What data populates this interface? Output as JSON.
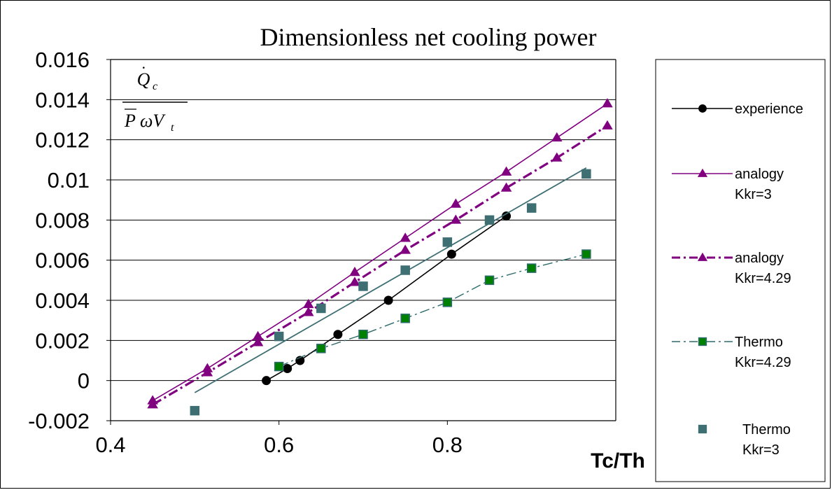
{
  "chart_data": {
    "type": "line",
    "title": "Dimensionless net cooling power",
    "xlabel": "Tc/Th",
    "ylabel": "Q̇c / (P̄ ω Vt)",
    "xlim": [
      0.4,
      1.0
    ],
    "ylim": [
      -0.002,
      0.016
    ],
    "xticks": [
      0.4,
      0.6,
      0.8
    ],
    "xtick_labels": [
      "0.4",
      "0.6",
      "0.8"
    ],
    "yticks": [
      -0.002,
      0,
      0.002,
      0.004,
      0.006,
      0.008,
      0.01,
      0.012,
      0.014,
      0.016
    ],
    "ytick_labels": [
      "-0.002",
      "0",
      "0.002",
      "0.004",
      "0.006",
      "0.008",
      "0.01",
      "0.012",
      "0.014",
      "0.016"
    ],
    "grid": "horizontal",
    "legend_position": "right",
    "series": [
      {
        "name_lines": [
          "experience"
        ],
        "color": "#000000",
        "marker": "circle",
        "line": "solid",
        "x": [
          0.585,
          0.61,
          0.625,
          0.67,
          0.73,
          0.805,
          0.87
        ],
        "y": [
          0.0,
          0.0006,
          0.001,
          0.0023,
          0.004,
          0.0063,
          0.0082
        ]
      },
      {
        "name_lines": [
          "analogy",
          "Kkr=3"
        ],
        "color": "#800080",
        "marker": "triangle",
        "line": "solid",
        "x": [
          0.45,
          0.515,
          0.575,
          0.635,
          0.69,
          0.75,
          0.81,
          0.87,
          0.93,
          0.99
        ],
        "y": [
          -0.001,
          0.0006,
          0.0022,
          0.0038,
          0.0054,
          0.0071,
          0.0088,
          0.0104,
          0.0121,
          0.0138
        ]
      },
      {
        "name_lines": [
          "analogy",
          "Kkr=4.29"
        ],
        "color": "#800080",
        "marker": "triangle",
        "line": "dashdot",
        "x": [
          0.45,
          0.515,
          0.575,
          0.635,
          0.69,
          0.75,
          0.81,
          0.87,
          0.93,
          0.99
        ],
        "y": [
          -0.0012,
          0.0004,
          0.0019,
          0.0034,
          0.0049,
          0.0065,
          0.008,
          0.0096,
          0.0111,
          0.0127
        ]
      },
      {
        "name_lines": [
          "Thermo",
          "Kkr=4.29"
        ],
        "color": "#2E6B6B",
        "marker_fill": "#008000",
        "marker": "square",
        "line": "dashdot",
        "x": [
          0.6,
          0.65,
          0.7,
          0.75,
          0.8,
          0.85,
          0.9,
          0.965
        ],
        "y": [
          0.0007,
          0.0016,
          0.0023,
          0.0031,
          0.0039,
          0.005,
          0.0056,
          0.0063
        ]
      },
      {
        "name_lines": [
          "Thermo",
          "Kkr=3"
        ],
        "color": "#3E6F73",
        "marker_fill": "#3E6F73",
        "marker": "square",
        "line": "none",
        "x": [
          0.5,
          0.6,
          0.65,
          0.7,
          0.75,
          0.8,
          0.85,
          0.9,
          0.965
        ],
        "y": [
          -0.0015,
          0.0022,
          0.0036,
          0.0047,
          0.0055,
          0.0069,
          0.008,
          0.0086,
          0.0103
        ],
        "trend": {
          "x": [
            0.5,
            0.965
          ],
          "y": [
            -0.0006,
            0.0106
          ]
        }
      }
    ]
  }
}
